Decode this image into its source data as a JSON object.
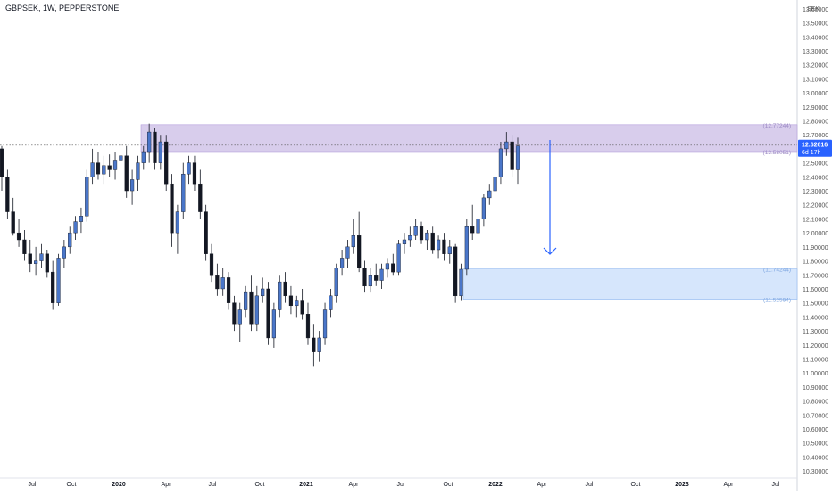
{
  "title": "GBPSEK, 1W, PEPPERSTONE",
  "currency_label": "SEK",
  "chart_data": {
    "type": "candlestick",
    "title": "GBPSEK, 1W, PEPPERSTONE",
    "ylim": [
      10.25,
      13.65
    ],
    "y_ticks": [
      "10.30000",
      "10.40000",
      "10.50000",
      "10.60000",
      "10.70000",
      "10.80000",
      "10.90000",
      "11.00000",
      "11.10000",
      "11.20000",
      "11.30000",
      "11.40000",
      "11.50000",
      "11.60000",
      "11.70000",
      "11.80000",
      "11.90000",
      "12.00000",
      "12.10000",
      "12.20000",
      "12.30000",
      "12.40000",
      "12.50000",
      "12.60000",
      "12.70000",
      "12.80000",
      "12.90000",
      "13.00000",
      "13.10000",
      "13.20000",
      "13.30000",
      "13.40000",
      "13.50000",
      "13.60000"
    ],
    "x_ticks": [
      "Jul",
      "Oct",
      "2020",
      "Apr",
      "Jul",
      "Oct",
      "2021",
      "Apr",
      "Jul",
      "Oct",
      "2022",
      "Apr",
      "Jul",
      "Oct",
      "2023",
      "Apr",
      "Jul"
    ],
    "current_price": "12.62616",
    "countdown": "6d 17h",
    "zones": [
      {
        "name": "supply",
        "top": "12.77244",
        "bottom": "12.58051",
        "color": "#d1c4e9"
      },
      {
        "name": "demand",
        "top": "11.74244",
        "bottom": "11.52594",
        "color": "#cfe2fb"
      }
    ],
    "up_color": "#4a76c9",
    "down_color": "#131722",
    "candles": [
      [
        12.6,
        12.62,
        12.3,
        12.4
      ],
      [
        12.4,
        12.45,
        12.1,
        12.15
      ],
      [
        12.15,
        12.25,
        11.98,
        12.0
      ],
      [
        12.0,
        12.1,
        11.9,
        11.95
      ],
      [
        11.95,
        12.02,
        11.8,
        11.85
      ],
      [
        11.85,
        11.95,
        11.72,
        11.78
      ],
      [
        11.78,
        11.9,
        11.7,
        11.8
      ],
      [
        11.8,
        11.92,
        11.75,
        11.85
      ],
      [
        11.85,
        11.88,
        11.68,
        11.72
      ],
      [
        11.72,
        11.8,
        11.45,
        11.5
      ],
      [
        11.5,
        11.85,
        11.48,
        11.82
      ],
      [
        11.82,
        11.95,
        11.75,
        11.9
      ],
      [
        11.9,
        12.05,
        11.85,
        12.0
      ],
      [
        12.0,
        12.12,
        11.95,
        12.08
      ],
      [
        12.08,
        12.18,
        12.0,
        12.12
      ],
      [
        12.12,
        12.45,
        12.08,
        12.4
      ],
      [
        12.4,
        12.6,
        12.35,
        12.5
      ],
      [
        12.5,
        12.58,
        12.38,
        12.42
      ],
      [
        12.42,
        12.55,
        12.35,
        12.48
      ],
      [
        12.48,
        12.56,
        12.4,
        12.45
      ],
      [
        12.45,
        12.58,
        12.38,
        12.52
      ],
      [
        12.52,
        12.6,
        12.45,
        12.55
      ],
      [
        12.55,
        12.62,
        12.25,
        12.3
      ],
      [
        12.3,
        12.45,
        12.2,
        12.38
      ],
      [
        12.38,
        12.55,
        12.3,
        12.5
      ],
      [
        12.5,
        12.62,
        12.45,
        12.58
      ],
      [
        12.58,
        12.78,
        12.5,
        12.72
      ],
      [
        12.72,
        12.75,
        12.45,
        12.5
      ],
      [
        12.5,
        12.7,
        12.45,
        12.65
      ],
      [
        12.65,
        12.7,
        12.3,
        12.35
      ],
      [
        12.35,
        12.42,
        11.9,
        12.0
      ],
      [
        12.0,
        12.2,
        11.85,
        12.15
      ],
      [
        12.15,
        12.5,
        12.1,
        12.42
      ],
      [
        12.42,
        12.55,
        12.35,
        12.5
      ],
      [
        12.5,
        12.55,
        12.3,
        12.35
      ],
      [
        12.35,
        12.45,
        12.1,
        12.15
      ],
      [
        12.15,
        12.2,
        11.8,
        11.85
      ],
      [
        11.85,
        11.92,
        11.65,
        11.7
      ],
      [
        11.7,
        11.78,
        11.55,
        11.6
      ],
      [
        11.6,
        11.75,
        11.55,
        11.68
      ],
      [
        11.68,
        11.72,
        11.45,
        11.5
      ],
      [
        11.5,
        11.55,
        11.3,
        11.35
      ],
      [
        11.35,
        11.5,
        11.22,
        11.45
      ],
      [
        11.45,
        11.62,
        11.4,
        11.58
      ],
      [
        11.58,
        11.7,
        11.3,
        11.35
      ],
      [
        11.35,
        11.62,
        11.3,
        11.55
      ],
      [
        11.55,
        11.68,
        11.5,
        11.6
      ],
      [
        11.6,
        11.65,
        11.2,
        11.25
      ],
      [
        11.25,
        11.5,
        11.18,
        11.45
      ],
      [
        11.45,
        11.7,
        11.4,
        11.65
      ],
      [
        11.65,
        11.72,
        11.5,
        11.55
      ],
      [
        11.55,
        11.62,
        11.42,
        11.48
      ],
      [
        11.48,
        11.55,
        11.4,
        11.52
      ],
      [
        11.52,
        11.6,
        11.38,
        11.42
      ],
      [
        11.42,
        11.5,
        11.2,
        11.25
      ],
      [
        11.25,
        11.35,
        11.05,
        11.15
      ],
      [
        11.15,
        11.3,
        11.08,
        11.25
      ],
      [
        11.25,
        11.5,
        11.2,
        11.45
      ],
      [
        11.45,
        11.6,
        11.4,
        11.55
      ],
      [
        11.55,
        11.78,
        11.5,
        11.75
      ],
      [
        11.75,
        11.88,
        11.7,
        11.82
      ],
      [
        11.82,
        11.95,
        11.75,
        11.9
      ],
      [
        11.9,
        12.1,
        11.85,
        11.98
      ],
      [
        11.98,
        12.15,
        11.72,
        11.75
      ],
      [
        11.75,
        11.8,
        11.58,
        11.62
      ],
      [
        11.62,
        11.75,
        11.58,
        11.7
      ],
      [
        11.7,
        11.78,
        11.62,
        11.66
      ],
      [
        11.66,
        11.78,
        11.6,
        11.74
      ],
      [
        11.74,
        11.82,
        11.68,
        11.78
      ],
      [
        11.78,
        11.85,
        11.7,
        11.72
      ],
      [
        11.72,
        11.95,
        11.7,
        11.92
      ],
      [
        11.92,
        12.0,
        11.85,
        11.95
      ],
      [
        11.95,
        12.05,
        11.9,
        11.98
      ],
      [
        11.98,
        12.1,
        11.95,
        12.05
      ],
      [
        12.05,
        12.08,
        11.92,
        11.95
      ],
      [
        11.95,
        12.02,
        11.88,
        12.0
      ],
      [
        12.0,
        12.05,
        11.85,
        11.88
      ],
      [
        11.88,
        11.98,
        11.82,
        11.95
      ],
      [
        11.95,
        12.0,
        11.8,
        11.85
      ],
      [
        11.85,
        11.95,
        11.78,
        11.9
      ],
      [
        11.9,
        11.92,
        11.5,
        11.55
      ],
      [
        11.55,
        11.78,
        11.52,
        11.74
      ],
      [
        11.74,
        12.1,
        11.7,
        12.05
      ],
      [
        12.05,
        12.2,
        11.95,
        12.0
      ],
      [
        12.0,
        12.12,
        11.98,
        12.1
      ],
      [
        12.1,
        12.28,
        12.05,
        12.25
      ],
      [
        12.25,
        12.35,
        12.2,
        12.3
      ],
      [
        12.3,
        12.45,
        12.25,
        12.4
      ],
      [
        12.4,
        12.65,
        12.35,
        12.6
      ],
      [
        12.6,
        12.72,
        12.55,
        12.65
      ],
      [
        12.65,
        12.7,
        12.4,
        12.45
      ],
      [
        12.45,
        12.68,
        12.35,
        12.62
      ]
    ]
  }
}
